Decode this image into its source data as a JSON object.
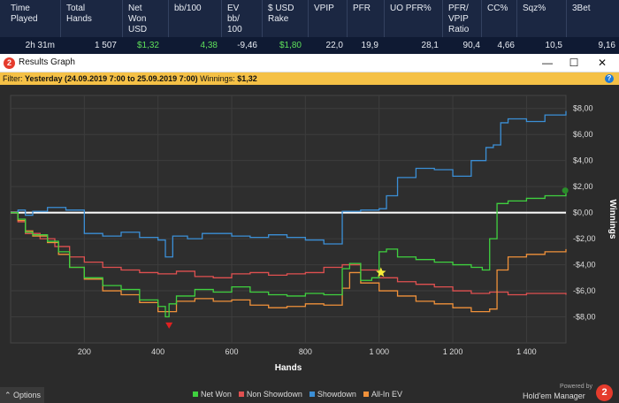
{
  "stats": {
    "headers": [
      "Time\nPlayed",
      "Total\nHands",
      "Net\nWon\nUSD",
      "bb/100",
      "EV\nbb/\n100",
      "$ USD\nRake",
      "VPIP",
      "PFR",
      "UO PFR%",
      "PFR/\nVPIP\nRatio",
      "CC%",
      "Sqz%",
      "3Bet"
    ],
    "values": [
      "2h 31m",
      "1 507",
      "$1,32",
      "4,38",
      "-9,46",
      "$1,80",
      "22,0",
      "19,9",
      "28,1",
      "90,4",
      "4,66",
      "10,5",
      "9,16"
    ]
  },
  "window": {
    "logo": "2",
    "title": "Results Graph",
    "minimize": "—",
    "maximize": "☐",
    "close": "✕"
  },
  "filter": {
    "prefix": "Filter: ",
    "range": "Yesterday (24.09.2019 7:00 to 25.09.2019 7:00)",
    "winnings_label": " Winnings: ",
    "winnings_value": "$1,32",
    "help": "?"
  },
  "chart_data": {
    "type": "line",
    "xlabel": "Hands",
    "ylabel": "Winnings",
    "xlim": [
      0,
      1507
    ],
    "ylim": [
      -10,
      9
    ],
    "x_ticks": [
      200,
      400,
      600,
      800,
      1000,
      1200,
      1400
    ],
    "x_tick_labels": [
      "200",
      "400",
      "600",
      "800",
      "1 000",
      "1 200",
      "1 400"
    ],
    "y_ticks": [
      8,
      6,
      4,
      2,
      0,
      -2,
      -4,
      -6,
      -8
    ],
    "y_tick_labels": [
      "$8,00",
      "$6,00",
      "$4,00",
      "$2,00",
      "$0,00",
      "-$2,00",
      "-$4,00",
      "-$6,00",
      "-$8,00"
    ],
    "grid": true,
    "legend_position": "bottom",
    "series": [
      {
        "name": "Net Won",
        "color": "#3fd13f",
        "x": [
          0,
          20,
          40,
          60,
          100,
          130,
          160,
          200,
          250,
          300,
          350,
          400,
          420,
          430,
          450,
          500,
          550,
          600,
          650,
          700,
          750,
          800,
          850,
          900,
          920,
          950,
          980,
          1000,
          1020,
          1050,
          1100,
          1150,
          1200,
          1250,
          1280,
          1300,
          1320,
          1350,
          1400,
          1450,
          1507
        ],
        "y": [
          0,
          -0.5,
          -1.5,
          -1.7,
          -2.2,
          -3.0,
          -4.2,
          -5.0,
          -5.6,
          -5.9,
          -6.7,
          -7.2,
          -8.0,
          -7.0,
          -6.4,
          -5.9,
          -6.1,
          -5.7,
          -6.1,
          -6.3,
          -6.4,
          -6.2,
          -6.3,
          -4.3,
          -3.9,
          -5.2,
          -5.0,
          -3.0,
          -2.8,
          -3.4,
          -3.6,
          -3.8,
          -4.0,
          -4.2,
          -4.4,
          -2.0,
          0.7,
          0.9,
          1.1,
          1.3,
          1.6
        ]
      },
      {
        "name": "Non Showdown",
        "color": "#e05050",
        "x": [
          0,
          20,
          40,
          80,
          120,
          160,
          200,
          250,
          300,
          350,
          400,
          450,
          500,
          550,
          600,
          650,
          700,
          750,
          800,
          850,
          900,
          950,
          1000,
          1050,
          1100,
          1150,
          1200,
          1250,
          1300,
          1350,
          1400,
          1450,
          1507
        ],
        "y": [
          0,
          -0.7,
          -1.6,
          -2.0,
          -2.6,
          -3.4,
          -3.8,
          -4.2,
          -4.4,
          -4.6,
          -4.7,
          -4.5,
          -4.9,
          -5.0,
          -4.7,
          -4.6,
          -4.8,
          -4.7,
          -4.6,
          -4.2,
          -4.0,
          -4.4,
          -5.0,
          -5.3,
          -5.5,
          -5.7,
          -6.0,
          -6.2,
          -6.1,
          -6.3,
          -6.2,
          -6.2,
          -6.3
        ]
      },
      {
        "name": "Showdown",
        "color": "#3b8fd6",
        "x": [
          0,
          20,
          40,
          60,
          100,
          150,
          200,
          250,
          300,
          350,
          400,
          420,
          440,
          480,
          520,
          600,
          650,
          700,
          750,
          800,
          850,
          900,
          950,
          1000,
          1020,
          1050,
          1100,
          1150,
          1200,
          1250,
          1290,
          1310,
          1330,
          1350,
          1400,
          1450,
          1507
        ],
        "y": [
          0,
          0.2,
          -0.2,
          0.1,
          0.4,
          0.2,
          -1.6,
          -1.8,
          -1.5,
          -1.9,
          -2.1,
          -3.4,
          -1.8,
          -2.0,
          -1.6,
          -1.8,
          -1.9,
          -1.7,
          -1.9,
          -2.1,
          -2.4,
          0.1,
          0.2,
          0.3,
          1.3,
          2.7,
          3.4,
          3.3,
          2.8,
          4.0,
          5.0,
          5.2,
          6.9,
          7.2,
          7.0,
          7.5,
          7.8
        ]
      },
      {
        "name": "All-In EV",
        "color": "#f0913a",
        "x": [
          0,
          20,
          40,
          60,
          100,
          130,
          160,
          200,
          250,
          300,
          350,
          400,
          450,
          500,
          550,
          600,
          650,
          700,
          750,
          800,
          850,
          900,
          920,
          950,
          1000,
          1050,
          1100,
          1150,
          1200,
          1250,
          1300,
          1320,
          1350,
          1400,
          1450,
          1507
        ],
        "y": [
          0,
          -0.6,
          -1.4,
          -1.8,
          -2.3,
          -3.2,
          -4.2,
          -5.1,
          -6.0,
          -6.3,
          -6.9,
          -7.6,
          -6.8,
          -6.6,
          -6.8,
          -6.7,
          -7.1,
          -7.3,
          -7.2,
          -7.0,
          -7.1,
          -5.8,
          -4.6,
          -5.4,
          -6.0,
          -6.4,
          -6.8,
          -7.0,
          -7.3,
          -7.6,
          -7.4,
          -4.4,
          -3.4,
          -3.2,
          -3.0,
          -2.8
        ]
      }
    ],
    "markers": [
      {
        "name": "min-marker",
        "shape": "triangle-down",
        "color": "#e02020",
        "x": 430,
        "y": -8.7
      },
      {
        "name": "star-marker",
        "shape": "star",
        "color": "#f6ec3a",
        "x": 1005,
        "y": -4.6
      },
      {
        "name": "end-marker",
        "shape": "circle",
        "color": "#2a8d2a",
        "x": 1505,
        "y": 1.7
      }
    ]
  },
  "bottom": {
    "options_label": "⌃  Options",
    "powered": "Powered by",
    "brand": "Hold'em Manager",
    "brand_logo": "2"
  },
  "colors": {
    "header_bg": "#1b2742",
    "row_bg": "#0f1a33",
    "filter_bg": "#f5c146",
    "chart_bg": "#2b2b2b",
    "brand_red": "#e53b2c"
  }
}
